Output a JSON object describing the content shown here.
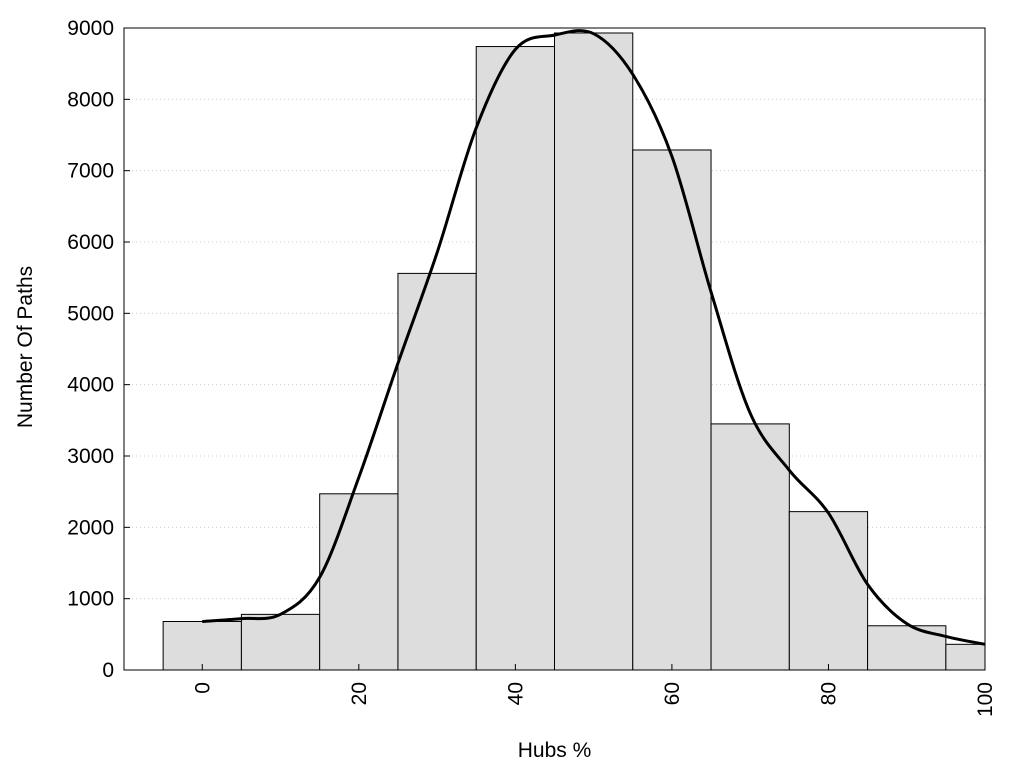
{
  "chart_data": {
    "type": "bar",
    "title": "",
    "xlabel": "Hubs %",
    "ylabel": "Number Of Paths",
    "xlim": [
      -10,
      100
    ],
    "ylim": [
      0,
      9000
    ],
    "x_ticks": [
      "0",
      "20",
      "40",
      "60",
      "80",
      "100"
    ],
    "y_ticks": [
      "0",
      "1000",
      "2000",
      "3000",
      "4000",
      "5000",
      "6000",
      "7000",
      "8000",
      "9000"
    ],
    "grid": "horizontal-dotted",
    "bars": {
      "bin_width": 10,
      "centers": [
        0,
        10,
        20,
        30,
        40,
        50,
        60,
        70,
        80,
        90,
        100
      ],
      "values": [
        680,
        780,
        2470,
        5560,
        8740,
        8930,
        7290,
        3450,
        2220,
        620,
        360
      ]
    },
    "curve": {
      "x": [
        0,
        5,
        10,
        15,
        20,
        25,
        30,
        35,
        40,
        45,
        50,
        55,
        60,
        65,
        70,
        75,
        80,
        85,
        90,
        95,
        100
      ],
      "y": [
        680,
        720,
        780,
        1300,
        2700,
        4300,
        5850,
        7600,
        8700,
        8900,
        8920,
        8350,
        7200,
        5300,
        3600,
        2800,
        2200,
        1200,
        650,
        470,
        360
      ]
    },
    "colors": {
      "bar_fill": "#dddddd",
      "bar_stroke": "#000000",
      "curve": "#000000",
      "grid": "#cccccc"
    }
  }
}
